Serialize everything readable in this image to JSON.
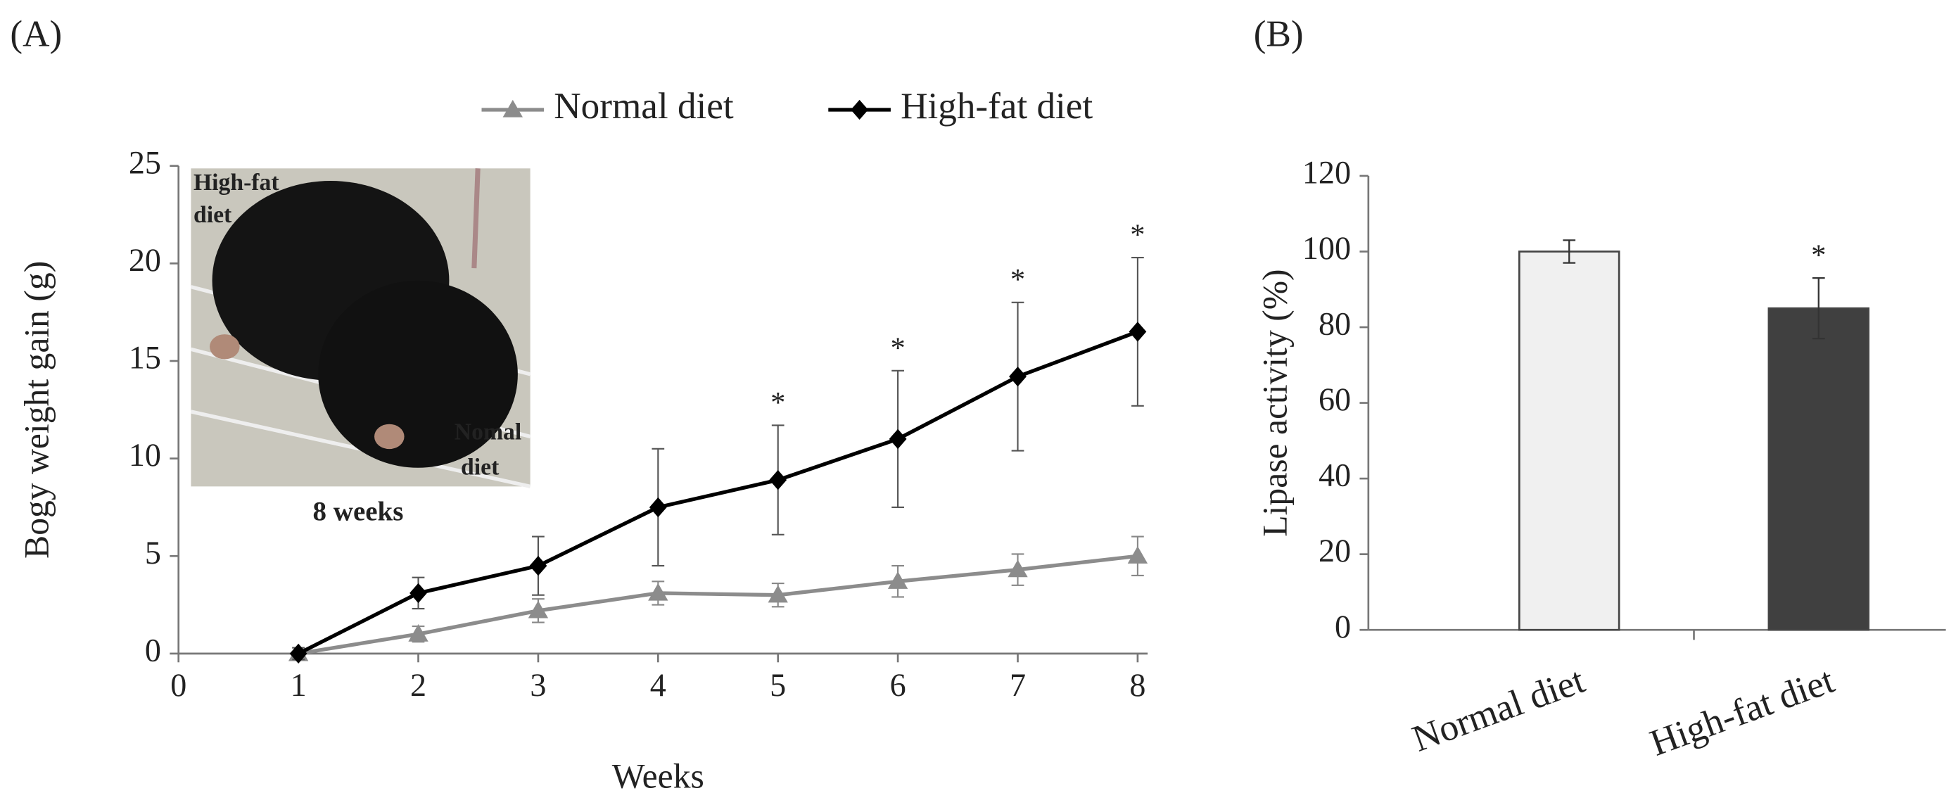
{
  "chart_data": [
    {
      "type": "line",
      "panel_label": "(A)",
      "x_label": "Weeks",
      "y_label": "Bogy weight gain (g)",
      "x": [
        1,
        2,
        3,
        4,
        5,
        6,
        7,
        8
      ],
      "xlim": [
        0,
        8
      ],
      "xticks": [
        0,
        1,
        2,
        3,
        4,
        5,
        6,
        7,
        8
      ],
      "ylim": [
        0,
        25
      ],
      "yticks": [
        0,
        5,
        10,
        15,
        20,
        25
      ],
      "series": [
        {
          "name": "Normal diet",
          "color": "#8c8c8c",
          "marker": "triangle",
          "values": [
            0,
            1,
            2.2,
            3.1,
            3.0,
            3.7,
            4.3,
            5.0
          ],
          "errors": [
            0.3,
            0.4,
            0.6,
            0.6,
            0.6,
            0.8,
            0.8,
            1.0
          ]
        },
        {
          "name": "High-fat diet",
          "color": "#000000",
          "marker": "diamond",
          "values": [
            0,
            3.1,
            4.5,
            7.5,
            8.9,
            11.0,
            14.2,
            16.5
          ],
          "errors": [
            0.3,
            0.8,
            1.5,
            3.0,
            2.8,
            3.5,
            3.8,
            3.8
          ],
          "annotations": [
            null,
            null,
            null,
            null,
            "*",
            "*",
            "*",
            "*"
          ]
        }
      ],
      "inset_labels": [
        "High-fat",
        "diet",
        "Nomal",
        "diet",
        "8 weeks"
      ]
    },
    {
      "type": "bar",
      "panel_label": "(B)",
      "y_label": "Lipase activity (%)",
      "categories": [
        "Normal diet",
        "High-fat diet"
      ],
      "values": [
        100,
        85
      ],
      "errors": [
        3,
        8
      ],
      "colors": [
        "#f0f0f0",
        "#404040"
      ],
      "annotations": [
        null,
        "*"
      ],
      "ylim": [
        0,
        120
      ],
      "yticks": [
        0,
        20,
        40,
        60,
        80,
        100,
        120
      ]
    }
  ]
}
